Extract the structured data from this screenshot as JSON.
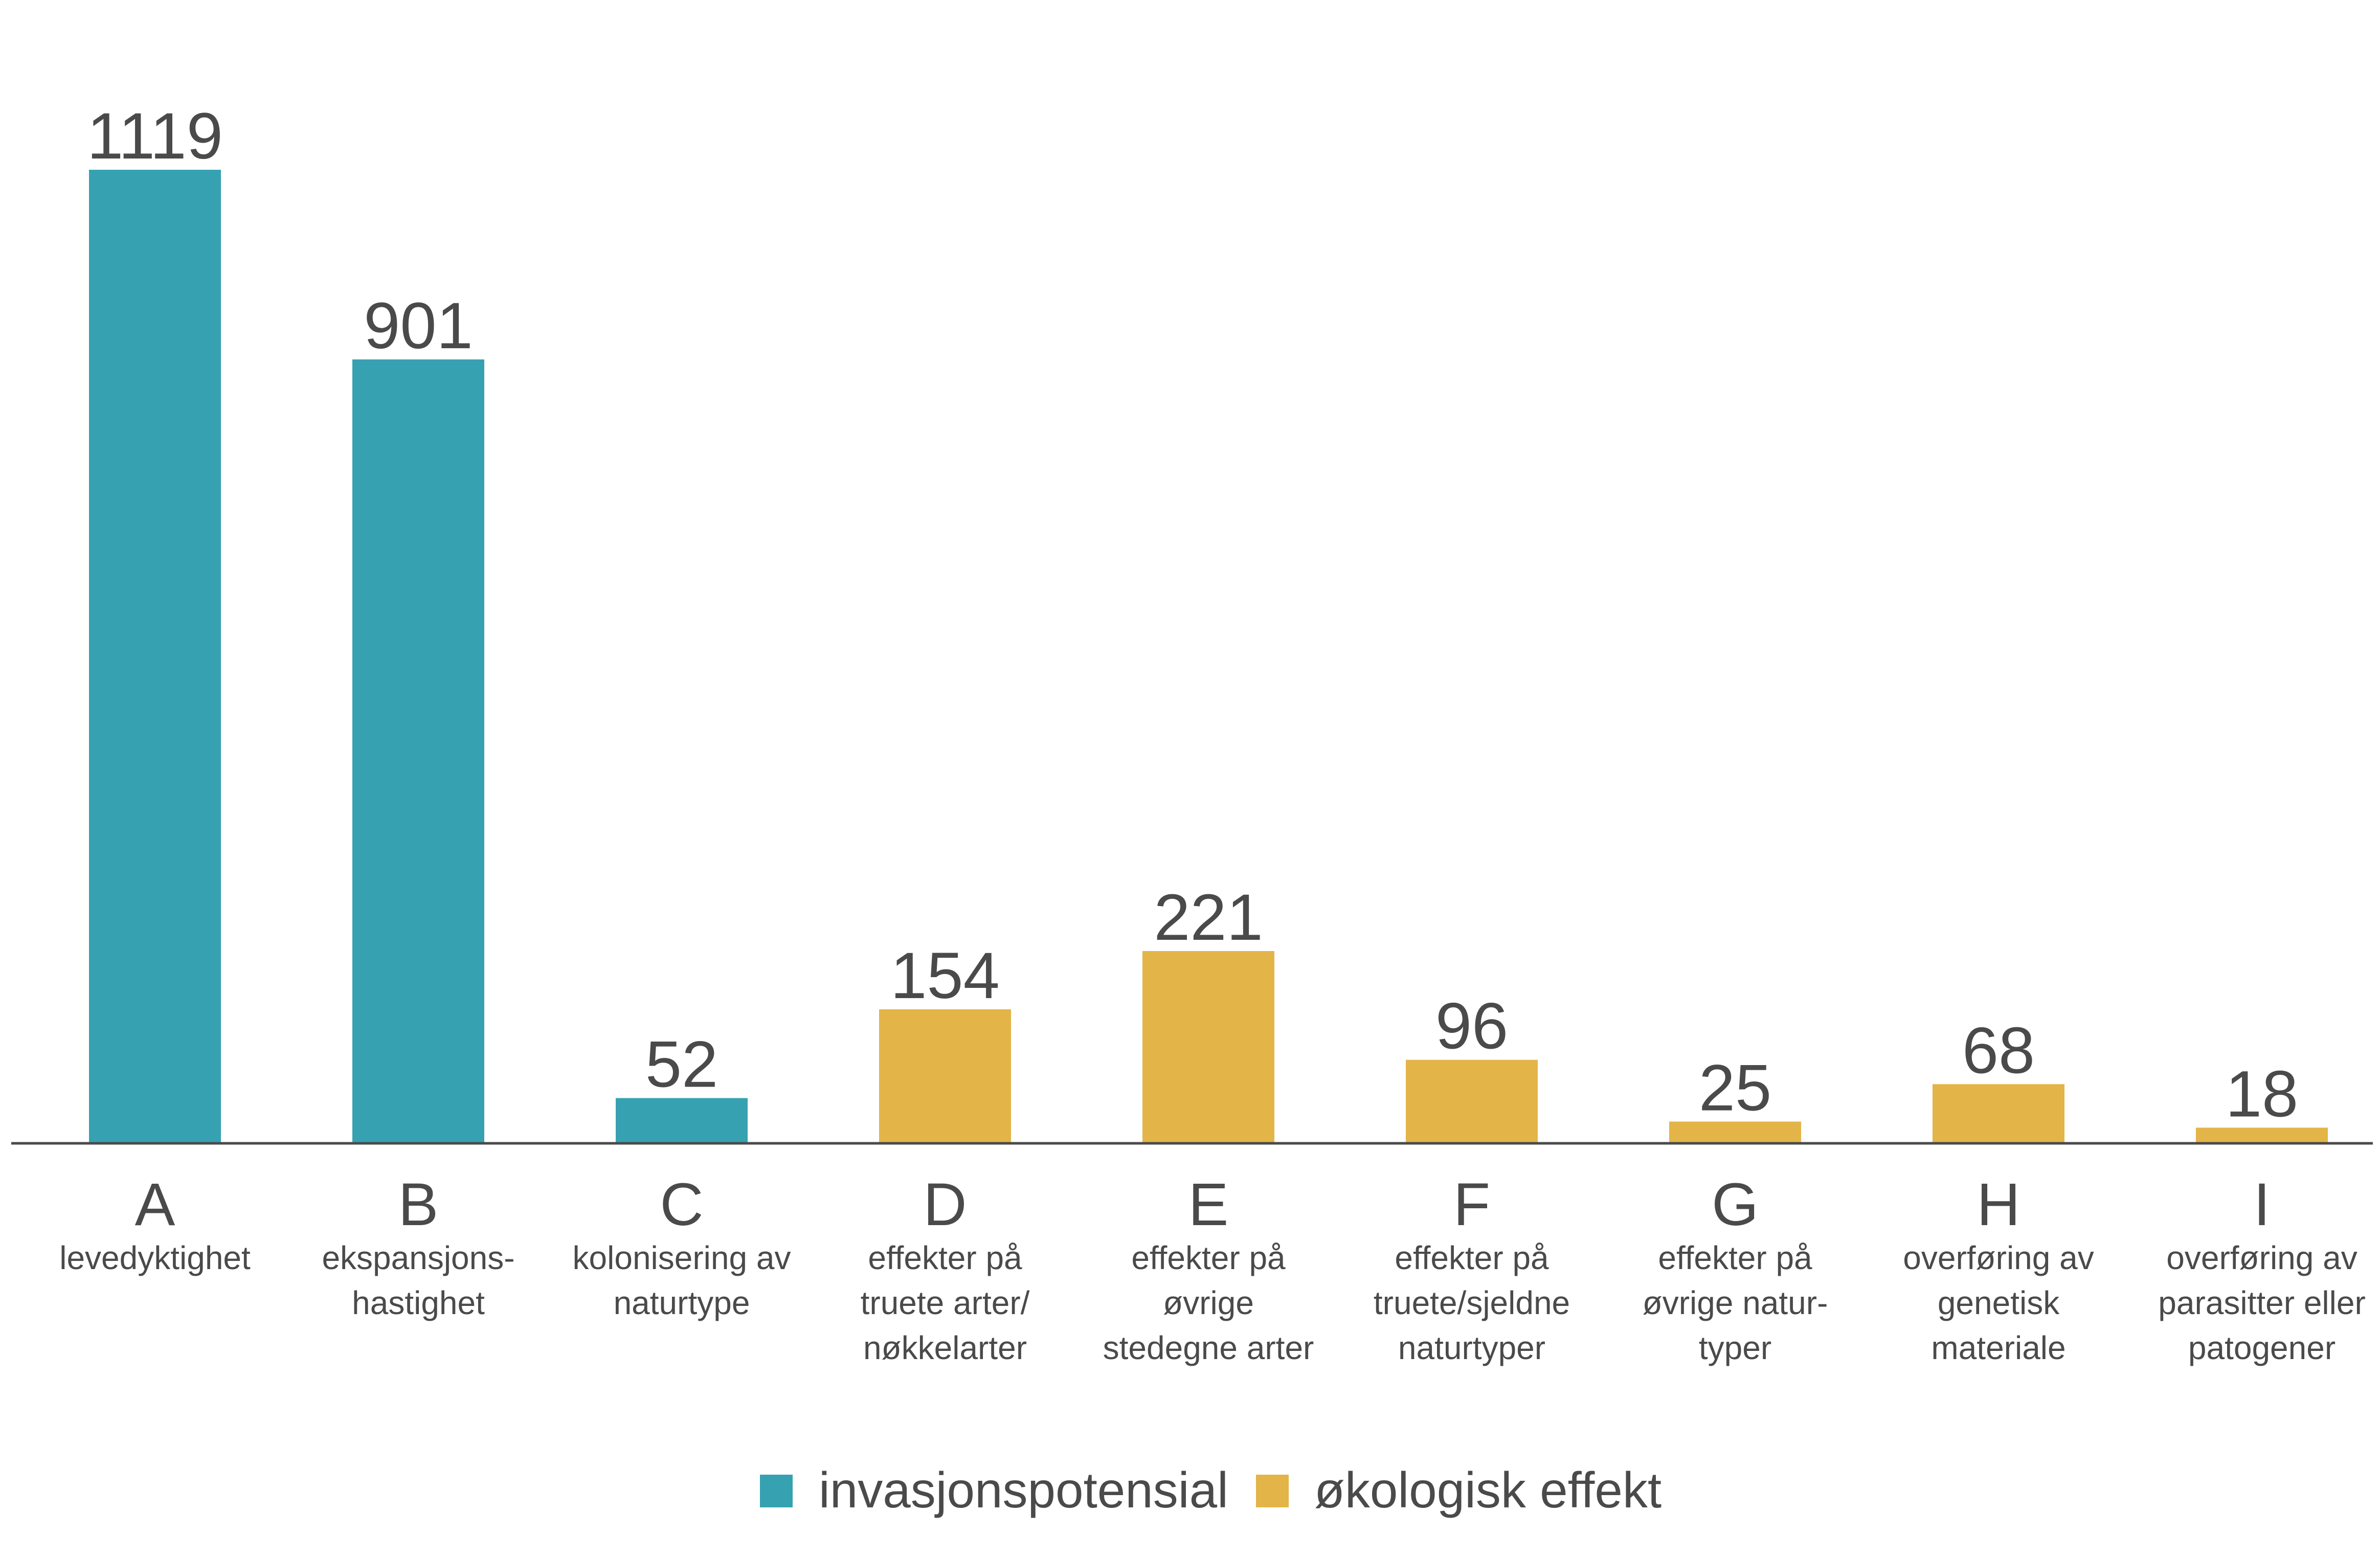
{
  "colors": {
    "invasjon": "#36a2b1",
    "okologisk": "#e3b448",
    "text": "#4a4a4a",
    "axis": "#4a4a4a"
  },
  "chart_data": {
    "type": "bar",
    "ylim": [
      0,
      1119
    ],
    "grid": false,
    "legend_position": "bottom-center",
    "categories": [
      "A",
      "B",
      "C",
      "D",
      "E",
      "F",
      "G",
      "H",
      "I"
    ],
    "descriptions": [
      [
        "levedyktighet"
      ],
      [
        "ekspansjons-",
        "hastighet"
      ],
      [
        "kolonisering av",
        "naturtype"
      ],
      [
        "effekter på",
        "truete arter/",
        "nøkkelarter"
      ],
      [
        "effekter på",
        "øvrige",
        "stedegne arter"
      ],
      [
        "effekter på",
        "truete/sjeldne",
        "naturtyper"
      ],
      [
        "effekter på",
        "øvrige natur-",
        "typer"
      ],
      [
        "overføring av",
        "genetisk",
        "materiale"
      ],
      [
        "overføring av",
        "parasitter eller",
        "patogener"
      ]
    ],
    "values": [
      1119,
      901,
      52,
      154,
      221,
      96,
      25,
      68,
      18
    ],
    "groups": [
      "invasjon",
      "invasjon",
      "invasjon",
      "okologisk",
      "okologisk",
      "okologisk",
      "okologisk",
      "okologisk",
      "okologisk"
    ],
    "series": [
      {
        "name": "invasjonspotensial",
        "key": "invasjon"
      },
      {
        "name": "økologisk effekt",
        "key": "okologisk"
      }
    ]
  }
}
